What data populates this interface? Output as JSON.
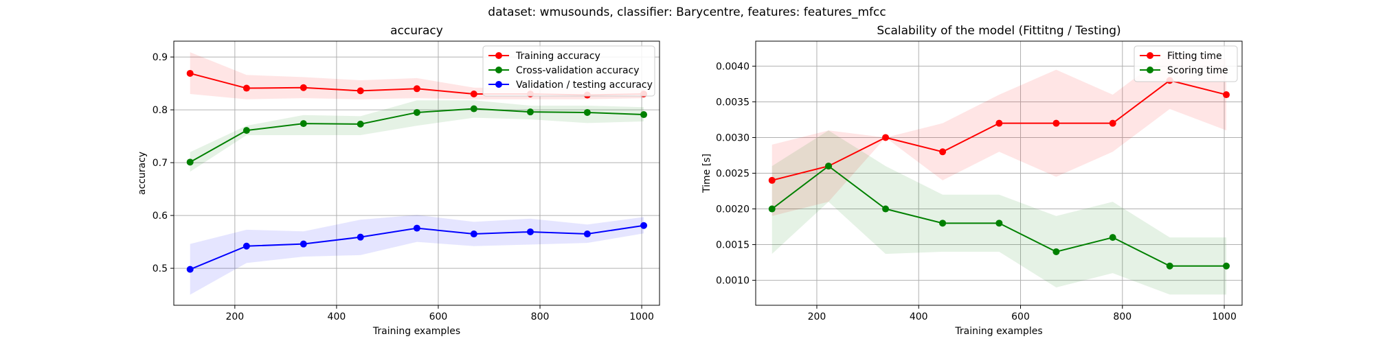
{
  "suptitle": "dataset: wmusounds, classifier: Barycentre, features: features_mfcc",
  "chart_data": [
    {
      "type": "line",
      "title": "accuracy",
      "xlabel": "Training examples",
      "ylabel": "accuracy",
      "xlim": [
        80,
        1035
      ],
      "ylim": [
        0.43,
        0.93
      ],
      "xticks": [
        200,
        400,
        600,
        800,
        1000
      ],
      "yticks": [
        0.5,
        0.6,
        0.7,
        0.8,
        0.9
      ],
      "grid": true,
      "legend_position": "top-right",
      "x": [
        112,
        223,
        335,
        447,
        558,
        670,
        781,
        893,
        1004
      ],
      "series": [
        {
          "name": "Training accuracy",
          "color": "#ff0000",
          "values": [
            0.869,
            0.841,
            0.842,
            0.836,
            0.84,
            0.83,
            0.83,
            0.828,
            0.83
          ],
          "band_low": [
            0.83,
            0.82,
            0.822,
            0.82,
            0.822,
            0.82,
            0.82,
            0.82,
            0.822
          ],
          "band_high": [
            0.909,
            0.866,
            0.862,
            0.856,
            0.86,
            0.842,
            0.841,
            0.838,
            0.84
          ]
        },
        {
          "name": "Cross-validation accuracy",
          "color": "#008000",
          "values": [
            0.701,
            0.761,
            0.774,
            0.773,
            0.795,
            0.802,
            0.796,
            0.795,
            0.791
          ],
          "band_low": [
            0.683,
            0.752,
            0.752,
            0.752,
            0.77,
            0.785,
            0.782,
            0.775,
            0.778
          ],
          "band_high": [
            0.72,
            0.77,
            0.79,
            0.788,
            0.818,
            0.818,
            0.808,
            0.808,
            0.805
          ]
        },
        {
          "name": "Validation / testing accuracy",
          "color": "#0000ff",
          "values": [
            0.498,
            0.542,
            0.546,
            0.559,
            0.576,
            0.565,
            0.569,
            0.565,
            0.581
          ],
          "band_low": [
            0.45,
            0.51,
            0.522,
            0.525,
            0.55,
            0.542,
            0.545,
            0.548,
            0.566
          ],
          "band_high": [
            0.546,
            0.573,
            0.57,
            0.592,
            0.601,
            0.588,
            0.594,
            0.583,
            0.597
          ]
        }
      ]
    },
    {
      "type": "line",
      "title": "Scalability of the model (Fittitng / Testing)",
      "xlabel": "Training examples",
      "ylabel": "Time [s]",
      "xlim": [
        80,
        1035
      ],
      "ylim": [
        0.00065,
        0.00435
      ],
      "xticks": [
        200,
        400,
        600,
        800,
        1000
      ],
      "yticks": [
        0.001,
        0.0015,
        0.002,
        0.0025,
        0.003,
        0.0035,
        0.004
      ],
      "ytick_labels": [
        "0.0010",
        "0.0015",
        "0.0020",
        "0.0025",
        "0.0030",
        "0.0035",
        "0.0040"
      ],
      "grid": true,
      "legend_position": "top-right",
      "x": [
        112,
        223,
        335,
        447,
        558,
        670,
        781,
        893,
        1004
      ],
      "series": [
        {
          "name": "Fitting time",
          "color": "#ff0000",
          "values": [
            0.0024,
            0.0026,
            0.003,
            0.0028,
            0.0032,
            0.0032,
            0.0032,
            0.0038,
            0.0036
          ],
          "band_low": [
            0.0019,
            0.0021,
            0.003,
            0.0024,
            0.0028,
            0.00245,
            0.0028,
            0.0034,
            0.0031
          ],
          "band_high": [
            0.0029,
            0.0031,
            0.003,
            0.0032,
            0.0036,
            0.00395,
            0.0036,
            0.0042,
            0.0041
          ]
        },
        {
          "name": "Scoring time",
          "color": "#008000",
          "values": [
            0.002,
            0.0026,
            0.002,
            0.0018,
            0.0018,
            0.0014,
            0.0016,
            0.0012,
            0.0012
          ],
          "band_low": [
            0.00137,
            0.0021,
            0.00137,
            0.0014,
            0.0014,
            0.0009,
            0.0011,
            0.0008,
            0.0008
          ],
          "band_high": [
            0.0026,
            0.0031,
            0.0026,
            0.0022,
            0.0022,
            0.0019,
            0.0021,
            0.0016,
            0.0016
          ]
        }
      ]
    }
  ]
}
